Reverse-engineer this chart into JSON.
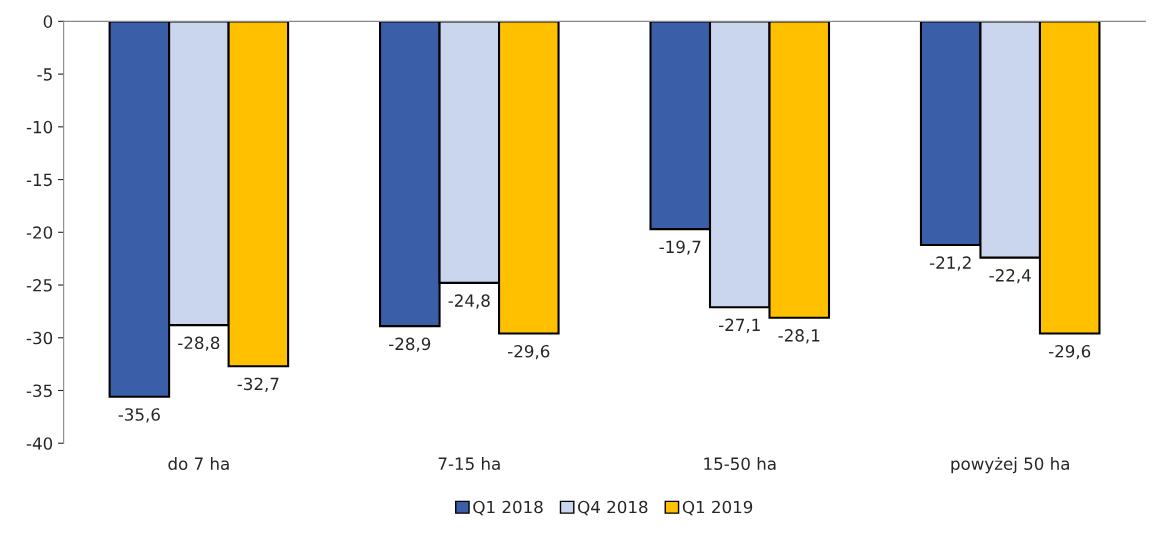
{
  "chart_data": {
    "type": "bar",
    "categories": [
      "do 7 ha",
      "7-15 ha",
      "15-50 ha",
      "powyżej 50 ha"
    ],
    "series": [
      {
        "name": "Q1 2018",
        "color": "#3a5fa8",
        "values": [
          -35.6,
          -28.9,
          -19.7,
          -21.2
        ],
        "value_labels": [
          "-35,6",
          "-28,9",
          "-19,7",
          "-21,2"
        ]
      },
      {
        "name": "Q4 2018",
        "color": "#c9d6ee",
        "values": [
          -28.8,
          -24.8,
          -27.1,
          -22.4
        ],
        "value_labels": [
          "-28,8",
          "-24,8",
          "-27,1",
          "-22,4"
        ]
      },
      {
        "name": "Q1 2019",
        "color": "#ffc000",
        "values": [
          -32.7,
          -29.6,
          -28.1,
          -29.6
        ],
        "value_labels": [
          "-32,7",
          "-29,6",
          "-28,1",
          "-29,6"
        ]
      }
    ],
    "ylim": [
      -40,
      0
    ],
    "yticks": [
      -40,
      -35,
      -30,
      -25,
      -20,
      -15,
      -10,
      -5,
      0
    ],
    "grid": false,
    "legend": "bottom"
  }
}
